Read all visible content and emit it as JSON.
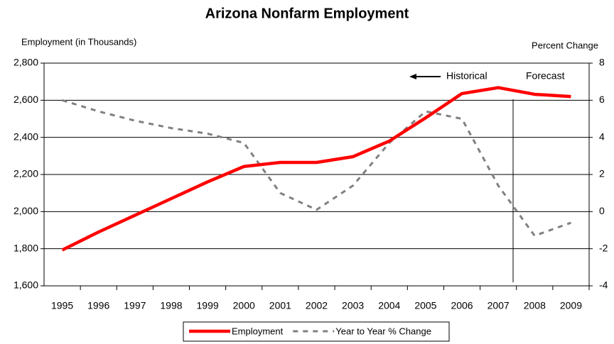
{
  "chart_data": {
    "type": "line",
    "title": "Arizona Nonfarm Employment",
    "y_label": "Employment (in Thousands)",
    "y2_label": "Percent Change",
    "categories": [
      "1995",
      "1996",
      "1997",
      "1998",
      "1999",
      "2000",
      "2001",
      "2002",
      "2003",
      "2004",
      "2005",
      "2006",
      "2007",
      "2008",
      "2009"
    ],
    "series": [
      {
        "name": "Employment",
        "color": "#ff0000",
        "dashed": false,
        "values": [
          1793,
          1890,
          1980,
          2070,
          2160,
          2243,
          2265,
          2265,
          2296,
          2380,
          2505,
          2636,
          2668,
          2632,
          2620
        ]
      },
      {
        "name": "Year to Year % Change",
        "color": "#808080",
        "dashed": true,
        "axis": "y2",
        "values": [
          6.0,
          5.4,
          4.9,
          4.5,
          4.2,
          3.7,
          1.0,
          0.1,
          1.4,
          3.7,
          5.4,
          5.0,
          1.4,
          -1.3,
          -0.6
        ]
      }
    ],
    "ylim": [
      1600,
      2800
    ],
    "yticks": [
      {
        "value": 1600,
        "label": "1,600"
      },
      {
        "value": 1800,
        "label": "1,800"
      },
      {
        "value": 2000,
        "label": "2,000"
      },
      {
        "value": 2200,
        "label": "2,200"
      },
      {
        "value": 2400,
        "label": "2,400"
      },
      {
        "value": 2600,
        "label": "2,600"
      },
      {
        "value": 2800,
        "label": "2,800"
      }
    ],
    "y2lim": [
      -4,
      8
    ],
    "y2ticks": [
      -4,
      -2,
      0,
      2,
      4,
      6,
      8
    ],
    "grid": true,
    "legend": "bottom",
    "annotations": [
      "Historical",
      "Forecast"
    ]
  }
}
